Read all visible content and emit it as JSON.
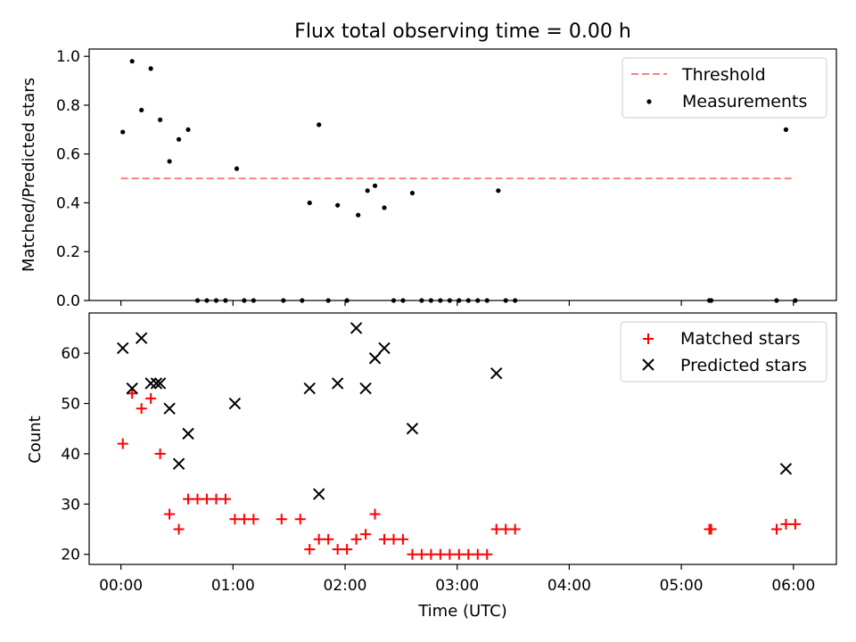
{
  "chart_data": [
    {
      "type": "scatter",
      "title": "Flux total observing time = 0.00 h",
      "xlabel": "",
      "ylabel": "Matched/Predicted stars",
      "ylim": [
        0,
        1.03
      ],
      "xlim_minutes": [
        -17,
        383
      ],
      "x_tick_labels": [
        "00:00",
        "01:00",
        "02:00",
        "03:00",
        "04:00",
        "05:00",
        "06:00"
      ],
      "x_ticks_minutes": [
        0,
        60,
        120,
        180,
        240,
        300,
        360
      ],
      "y_ticks": [
        0.0,
        0.2,
        0.4,
        0.6,
        0.8,
        1.0
      ],
      "y_tick_labels": [
        "0.0",
        "0.2",
        "0.4",
        "0.6",
        "0.8",
        "1.0"
      ],
      "legend_position": "top-right",
      "threshold": {
        "name": "Threshold",
        "y": 0.5,
        "x_range": [
          "00:00",
          "06:00"
        ],
        "color": "#ff7f7f",
        "style": "dashed"
      },
      "series": [
        {
          "name": "Measurements",
          "color": "#000000",
          "marker": "dot",
          "x": [
            "00:01",
            "00:06",
            "00:11",
            "00:16",
            "00:21",
            "00:26",
            "00:31",
            "00:36",
            "01:02",
            "01:41",
            "01:46",
            "01:56",
            "02:07",
            "02:12",
            "02:16",
            "02:21",
            "02:36",
            "03:22",
            "05:56",
            "00:41",
            "00:46",
            "00:51",
            "00:56",
            "01:06",
            "01:11",
            "01:27",
            "01:37",
            "01:51",
            "01:61",
            "02:26",
            "02:31",
            "02:41",
            "02:46",
            "02:51",
            "02:56",
            "03:01",
            "03:06",
            "03:11",
            "03:16",
            "03:26",
            "03:31",
            "05:15",
            "05:16",
            "05:51",
            "06:01"
          ],
          "y": [
            0.69,
            0.98,
            0.78,
            0.95,
            0.74,
            0.57,
            0.66,
            0.7,
            0.54,
            0.4,
            0.72,
            0.39,
            0.35,
            0.45,
            0.47,
            0.38,
            0.44,
            0.45,
            0.7,
            0,
            0,
            0,
            0,
            0,
            0,
            0,
            0,
            0,
            0,
            0,
            0,
            0,
            0,
            0,
            0,
            0,
            0,
            0,
            0,
            0,
            0,
            0,
            0,
            0,
            0
          ]
        }
      ]
    },
    {
      "type": "scatter",
      "title": "",
      "xlabel": "Time (UTC)",
      "ylabel": "Count",
      "ylim": [
        18,
        68
      ],
      "xlim_minutes": [
        -17,
        383
      ],
      "x_tick_labels": [
        "00:00",
        "01:00",
        "02:00",
        "03:00",
        "04:00",
        "05:00",
        "06:00"
      ],
      "x_ticks_minutes": [
        0,
        60,
        120,
        180,
        240,
        300,
        360
      ],
      "y_ticks": [
        20,
        30,
        40,
        50,
        60
      ],
      "y_tick_labels": [
        "20",
        "30",
        "40",
        "50",
        "60"
      ],
      "legend_position": "top-right",
      "series": [
        {
          "name": "Matched stars",
          "color": "#ff0000",
          "marker": "plus",
          "x": [
            "00:01",
            "00:06",
            "00:11",
            "00:16",
            "00:21",
            "00:26",
            "00:31",
            "00:36",
            "00:41",
            "00:46",
            "00:51",
            "00:56",
            "01:01",
            "01:06",
            "01:11",
            "01:26",
            "01:36",
            "01:41",
            "01:46",
            "01:51",
            "01:56",
            "02:01",
            "02:06",
            "02:11",
            "02:16",
            "02:21",
            "02:26",
            "02:31",
            "02:36",
            "02:41",
            "02:46",
            "02:51",
            "02:56",
            "03:01",
            "03:06",
            "03:11",
            "03:16",
            "03:21",
            "03:26",
            "03:31",
            "05:15",
            "05:16",
            "05:51",
            "05:56",
            "06:01"
          ],
          "y": [
            42,
            52,
            49,
            51,
            40,
            28,
            25,
            31,
            31,
            31,
            31,
            31,
            27,
            27,
            27,
            27,
            27,
            21,
            23,
            23,
            21,
            21,
            23,
            24,
            28,
            23,
            23,
            23,
            20,
            20,
            20,
            20,
            20,
            20,
            20,
            20,
            20,
            25,
            25,
            25,
            25,
            25,
            25,
            26,
            26
          ]
        },
        {
          "name": "Predicted stars",
          "color": "#000000",
          "marker": "x",
          "x": [
            "00:01",
            "00:06",
            "00:11",
            "00:16",
            "00:19",
            "00:21",
            "00:26",
            "00:31",
            "00:36",
            "01:01",
            "01:41",
            "01:46",
            "01:56",
            "02:06",
            "02:11",
            "02:16",
            "02:21",
            "02:36",
            "03:21",
            "05:56"
          ],
          "y": [
            61,
            53,
            63,
            54,
            54,
            54,
            49,
            38,
            44,
            50,
            53,
            32,
            54,
            65,
            53,
            59,
            61,
            45,
            56,
            37
          ]
        }
      ]
    }
  ]
}
